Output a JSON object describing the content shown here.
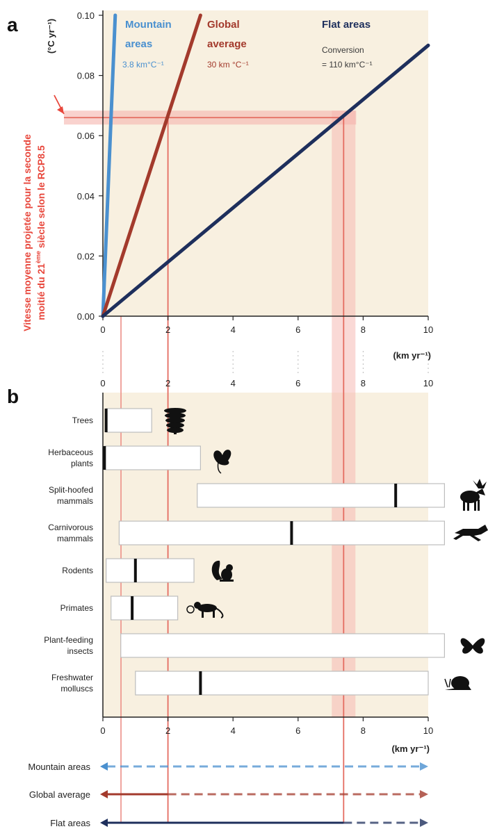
{
  "chart_data": [
    {
      "panel_label": "a",
      "type": "line",
      "y_axis_unit": "(°C yr⁻¹)",
      "x_axis_unit": "(km yr⁻¹)",
      "xlim": [
        0,
        10
      ],
      "ylim": [
        0,
        0.1
      ],
      "x_ticks": [
        "0",
        "2",
        "4",
        "6",
        "8",
        "10"
      ],
      "y_ticks": [
        "0.00",
        "0.02",
        "0.04",
        "0.06",
        "0.08",
        "0.10"
      ],
      "series": [
        {
          "name": "Mountain areas",
          "conversion": "3.8 km°C⁻¹",
          "color": "#4a90cf",
          "x": [
            0,
            0.38
          ],
          "y": [
            0,
            0.1
          ]
        },
        {
          "name": "Global average",
          "conversion": "30 km °C⁻¹",
          "color": "#a33a2c",
          "x": [
            0,
            3.0
          ],
          "y": [
            0,
            0.1
          ]
        },
        {
          "name": "Flat areas",
          "conversion_label": "Conversion",
          "conversion": "= 110 km°C⁻¹",
          "color": "#1e2f5c",
          "x": [
            0,
            10
          ],
          "y": [
            0,
            0.09
          ]
        }
      ],
      "projection_y": 0.066,
      "projection_x": [
        0.3,
        2.0,
        7.4
      ],
      "annotation_line1": "Vitesse moyenne projetée pour la seconde",
      "annotation_line2_prefix": "moitié du 21",
      "annotation_line2_sup": "ème",
      "annotation_line2_suffix": " siècle selon le RCP8.5"
    },
    {
      "panel_label": "b",
      "type": "bar",
      "x_axis_unit": "(km yr⁻¹)",
      "xlim": [
        0,
        10
      ],
      "x_ticks": [
        "0",
        "2",
        "4",
        "6",
        "8",
        "10"
      ],
      "categories": [
        {
          "line1": "Trees",
          "line2": "",
          "min": 0.1,
          "max": 1.5,
          "median": 0.1,
          "icon": "tree-icon"
        },
        {
          "line1": "Herbaceous",
          "line2": "plants",
          "min": 0.05,
          "max": 3.0,
          "median": 0.05,
          "icon": "leaf-icon"
        },
        {
          "line1": "Split-hoofed",
          "line2": "mammals",
          "min": 2.9,
          "max": 10.5,
          "median": 9.0,
          "icon": "moose-icon"
        },
        {
          "line1": "Carnivorous",
          "line2": "mammals",
          "min": 0.5,
          "max": 10.5,
          "median": 5.8,
          "icon": "wolf-icon"
        },
        {
          "line1": "Rodents",
          "line2": "",
          "min": 0.1,
          "max": 2.8,
          "median": 1.0,
          "icon": "squirrel-icon"
        },
        {
          "line1": "Primates",
          "line2": "",
          "min": 0.25,
          "max": 2.3,
          "median": 0.9,
          "icon": "monkey-icon"
        },
        {
          "line1": "Plant-feeding",
          "line2": "insects",
          "min": 0.55,
          "max": 10.5,
          "median": null,
          "icon": "butterfly-icon"
        },
        {
          "line1": "Freshwater",
          "line2": "molluscs",
          "min": 1.0,
          "max": 10.0,
          "median": 3.0,
          "icon": "snail-icon"
        }
      ]
    }
  ],
  "legend_rows": [
    {
      "label": "Mountain areas",
      "color": "#4a90cf",
      "solid_to": 0.3
    },
    {
      "label": "Global average",
      "color": "#a33a2c",
      "solid_to": 2.0
    },
    {
      "label": "Flat areas",
      "color": "#1e2f5c",
      "solid_to": 7.4
    }
  ]
}
